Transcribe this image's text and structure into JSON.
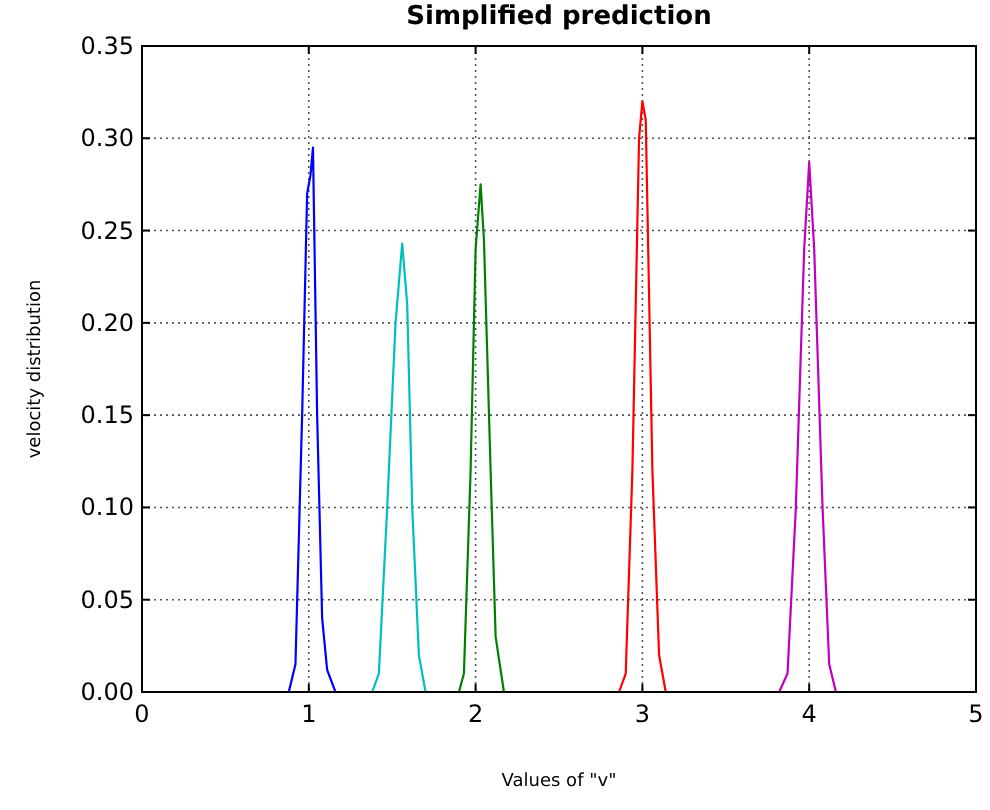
{
  "chart_data": {
    "type": "line",
    "title": "Simplified prediction",
    "xlabel": "Values of \"v\"",
    "ylabel": "velocity distribution",
    "xlim": [
      0,
      5
    ],
    "ylim": [
      0,
      0.35
    ],
    "xticks": [
      0,
      1,
      2,
      3,
      4,
      5
    ],
    "yticks": [
      {
        "value": 0,
        "label": "0.00"
      },
      {
        "value": 0.05,
        "label": "0.05"
      },
      {
        "value": 0.1,
        "label": "0.10"
      },
      {
        "value": 0.15,
        "label": "0.15"
      },
      {
        "value": 0.2,
        "label": "0.20"
      },
      {
        "value": 0.25,
        "label": "0.25"
      },
      {
        "value": 0.3,
        "label": "0.30"
      },
      {
        "value": 0.35,
        "label": "0.35"
      }
    ],
    "grid": true,
    "series": [
      {
        "color": "#0000ff",
        "x": [
          0.88,
          0.92,
          0.96,
          0.99,
          1.01,
          1.025,
          1.05,
          1.08,
          1.11,
          1.16
        ],
        "values": [
          0,
          0.015,
          0.15,
          0.27,
          0.28,
          0.295,
          0.15,
          0.04,
          0.012,
          0
        ]
      },
      {
        "color": "#00bfbf",
        "x": [
          1.38,
          1.42,
          1.47,
          1.52,
          1.56,
          1.59,
          1.62,
          1.66,
          1.7
        ],
        "values": [
          0,
          0.01,
          0.1,
          0.2,
          0.243,
          0.21,
          0.1,
          0.02,
          0
        ]
      },
      {
        "color": "#008000",
        "x": [
          1.9,
          1.93,
          1.97,
          2.0,
          2.03,
          2.05,
          2.09,
          2.12,
          2.17
        ],
        "values": [
          0,
          0.01,
          0.12,
          0.24,
          0.275,
          0.245,
          0.12,
          0.03,
          0
        ]
      },
      {
        "color": "#ff0000",
        "x": [
          2.86,
          2.9,
          2.94,
          2.98,
          3.0,
          3.02,
          3.06,
          3.1,
          3.14
        ],
        "values": [
          0,
          0.01,
          0.12,
          0.3,
          0.32,
          0.31,
          0.12,
          0.02,
          0
        ]
      },
      {
        "color": "#bf00bf",
        "x": [
          3.82,
          3.87,
          3.92,
          3.97,
          4.0,
          4.03,
          4.08,
          4.12,
          4.16
        ],
        "values": [
          0,
          0.01,
          0.1,
          0.24,
          0.287,
          0.24,
          0.1,
          0.015,
          0
        ]
      }
    ]
  }
}
